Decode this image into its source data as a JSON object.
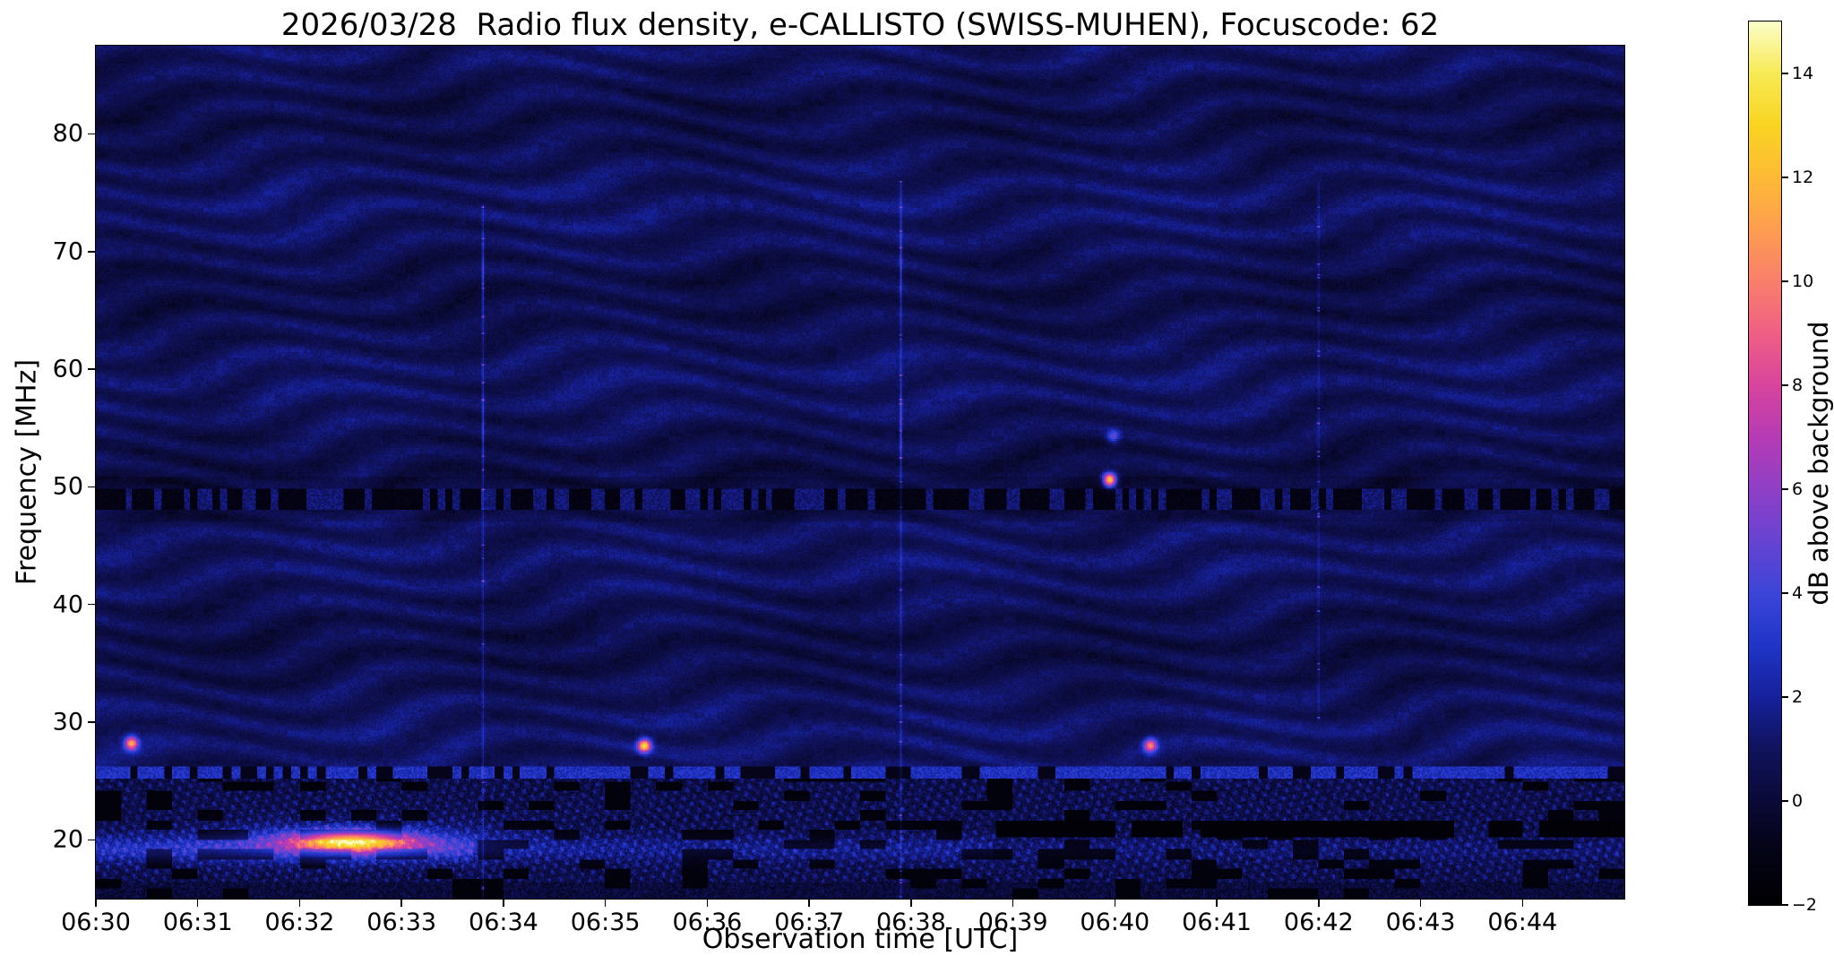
{
  "chart_data": {
    "type": "heatmap",
    "title": "2026/03/28  Radio flux density, e-CALLISTO (SWISS-MUHEN), Focuscode: 62",
    "xlabel": "Observation time [UTC]",
    "ylabel": "Frequency [MHz]",
    "x_range_utc": [
      "06:30:00",
      "06:45:00"
    ],
    "x_tick_labels": [
      "06:30",
      "06:31",
      "06:32",
      "06:33",
      "06:34",
      "06:35",
      "06:36",
      "06:37",
      "06:38",
      "06:39",
      "06:40",
      "06:41",
      "06:42",
      "06:43",
      "06:44"
    ],
    "y_ticks_mhz": [
      20,
      30,
      40,
      50,
      60,
      70,
      80
    ],
    "y_range_mhz": [
      15.0,
      87.5
    ],
    "grid": false,
    "colorbar": {
      "label": "dB above background",
      "range_db": [
        -2,
        15
      ],
      "ticks": [
        {
          "v": 14,
          "label": "14"
        },
        {
          "v": 12,
          "label": "12"
        },
        {
          "v": 10,
          "label": "10"
        },
        {
          "v": 8,
          "label": "8"
        },
        {
          "v": 6,
          "label": "6"
        },
        {
          "v": 4,
          "label": "4"
        },
        {
          "v": 2,
          "label": "2"
        },
        {
          "v": 0,
          "label": "0"
        },
        {
          "v": -2,
          "label": "−2"
        }
      ],
      "stops": [
        {
          "v": -2,
          "c": "#000002"
        },
        {
          "v": -0.8,
          "c": "#05041a"
        },
        {
          "v": 0,
          "c": "#0a0a38"
        },
        {
          "v": 1,
          "c": "#10125c"
        },
        {
          "v": 2,
          "c": "#16219b"
        },
        {
          "v": 3,
          "c": "#1f35c8"
        },
        {
          "v": 4,
          "c": "#3c45d8"
        },
        {
          "v": 5,
          "c": "#6743d2"
        },
        {
          "v": 6,
          "c": "#8f3fc6"
        },
        {
          "v": 7,
          "c": "#b53bb4"
        },
        {
          "v": 8,
          "c": "#d8449d"
        },
        {
          "v": 9,
          "c": "#ef5f85"
        },
        {
          "v": 10,
          "c": "#f97f6b"
        },
        {
          "v": 11,
          "c": "#fd9d50"
        },
        {
          "v": 12,
          "c": "#fdba35"
        },
        {
          "v": 13,
          "c": "#f9d422"
        },
        {
          "v": 14,
          "c": "#f7ea55"
        },
        {
          "v": 15,
          "c": "#fbfdc9"
        }
      ]
    },
    "background_db": 0.8,
    "features": {
      "interference_bands": [
        {
          "center_mhz": 49.0,
          "half_width_mhz": 0.9,
          "style": "dashed-dark"
        },
        {
          "center_mhz": 25.7,
          "half_width_mhz": 0.5,
          "style": "dashed-bright"
        },
        {
          "center_mhz": 19.2,
          "half_width_mhz": 1.1,
          "style": "bright-blue"
        }
      ],
      "noisy_below_mhz": 25.2,
      "vertical_lines_utc": [
        "06:33:48",
        "06:37:54",
        "06:42:00"
      ],
      "bursts": [
        {
          "time_utc": "06:30:21",
          "freq_mhz": 28.2,
          "peak_db": 10
        },
        {
          "time_utc": "06:35:23",
          "freq_mhz": 28.0,
          "peak_db": 12
        },
        {
          "time_utc": "06:39:57",
          "freq_mhz": 50.6,
          "peak_db": 13
        },
        {
          "time_utc": "06:39:59",
          "freq_mhz": 54.3,
          "peak_db": 4
        },
        {
          "time_utc": "06:40:21",
          "freq_mhz": 28.0,
          "peak_db": 9
        }
      ],
      "bright_patch": {
        "time_utc": "06:32:30",
        "freq_mhz": 19.9,
        "peak_db": 10,
        "duration_s": 160,
        "bandwidth_mhz": 2.6
      }
    }
  }
}
